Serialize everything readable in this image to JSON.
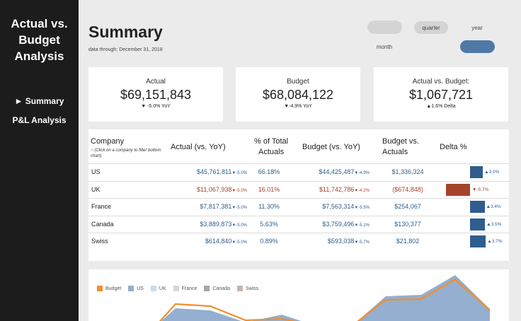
{
  "sidebar": {
    "title_lines": [
      "Actual vs.",
      "Budget",
      "Analysis"
    ],
    "nav": [
      {
        "label": "► Summary"
      },
      {
        "label": "P&L Analysis"
      }
    ]
  },
  "header": {
    "title": "Summary",
    "subtitle": "data through: December 31, 2018"
  },
  "period": {
    "quarter": "quarter",
    "year": "year",
    "month": "month"
  },
  "kpis": [
    {
      "label": "Actual",
      "value": "$69,151,843",
      "sub": "▼ -5.0% YoY"
    },
    {
      "label": "Budget",
      "value": "$68,084,122",
      "sub": "▼-4.9% YoY"
    },
    {
      "label": "Actual vs. Budget:",
      "value": "$1,067,721",
      "sub": "▲1.6% Delta"
    }
  ],
  "table": {
    "headers": {
      "company": "Company",
      "company_hint": "(Click on a company to filter bottom chart)",
      "actual": "Actual (vs. YoY)",
      "pct_line1": "% of Total",
      "pct_line2": "Actuals",
      "budget": "Budget (vs. YoY)",
      "bva_line1": "Budget vs.",
      "bva_line2": "Actuals",
      "delta": "Delta %"
    },
    "rows": [
      {
        "company": "US",
        "actual": "$45,761,811",
        "actual_yoy": "▼-5.0%",
        "pct": "66.18%",
        "budget": "$44,425,487",
        "budget_yoy": "▼-4.9%",
        "bva": "$1,336,324",
        "delta": "▲3.0%",
        "delta_value": 3.0
      },
      {
        "company": "UK",
        "actual": "$11,067,938",
        "actual_yoy": "▼-5.0%",
        "pct": "16.01%",
        "budget": "$11,742,786",
        "budget_yoy": "▼-4.2%",
        "bva": "($674,848)",
        "delta": "▼-5.7%",
        "delta_value": -5.7
      },
      {
        "company": "France",
        "actual": "$7,817,381",
        "actual_yoy": "▼-5.0%",
        "pct": "11.30%",
        "budget": "$7,563,314",
        "budget_yoy": "▼-5.5%",
        "bva": "$254,067",
        "delta": "▲3.4%",
        "delta_value": 3.4
      },
      {
        "company": "Canada",
        "actual": "$3,889,873",
        "actual_yoy": "▼-5.0%",
        "pct": "5.63%",
        "budget": "$3,759,496",
        "budget_yoy": "▼-5.1%",
        "bva": "$130,377",
        "delta": "▲3.5%",
        "delta_value": 3.5
      },
      {
        "company": "Swiss",
        "actual": "$614,840",
        "actual_yoy": "▼-5.0%",
        "pct": "0.89%",
        "budget": "$593,038",
        "budget_yoy": "▼-5.7%",
        "bva": "$21,802",
        "delta": "▲3.7%",
        "delta_value": 3.7
      }
    ]
  },
  "colors": {
    "positive": "#2f5d8e",
    "negative": "#a5432a",
    "budget_line": "#f28e2b",
    "us_area": "#94afcf"
  },
  "legend": [
    {
      "label": "Budget",
      "color": "#f28e2b"
    },
    {
      "label": "US",
      "color": "#94afcf"
    },
    {
      "label": "UK",
      "color": "#c6dbef"
    },
    {
      "label": "France",
      "color": "#d7d7d7"
    },
    {
      "label": "Canada",
      "color": "#a7a7a7"
    },
    {
      "label": "Swiss",
      "color": "#c8b5ac"
    }
  ]
}
